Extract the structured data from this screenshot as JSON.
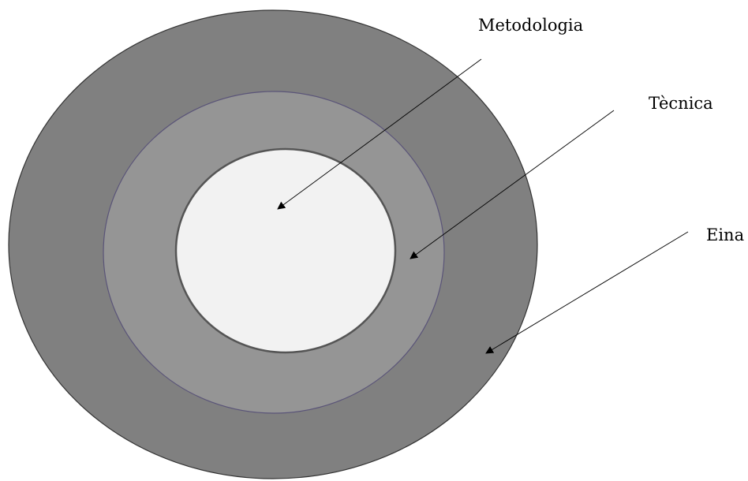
{
  "labels": {
    "metodologia": "Metodologia",
    "tecnica": "Tècnica",
    "eina": "Eina"
  },
  "colors": {
    "outer_ring": "#808080",
    "middle_ring": "#959595",
    "inner_circle": "#f2f2f2",
    "stroke": "#333333",
    "middle_stroke": "#5a5478"
  }
}
